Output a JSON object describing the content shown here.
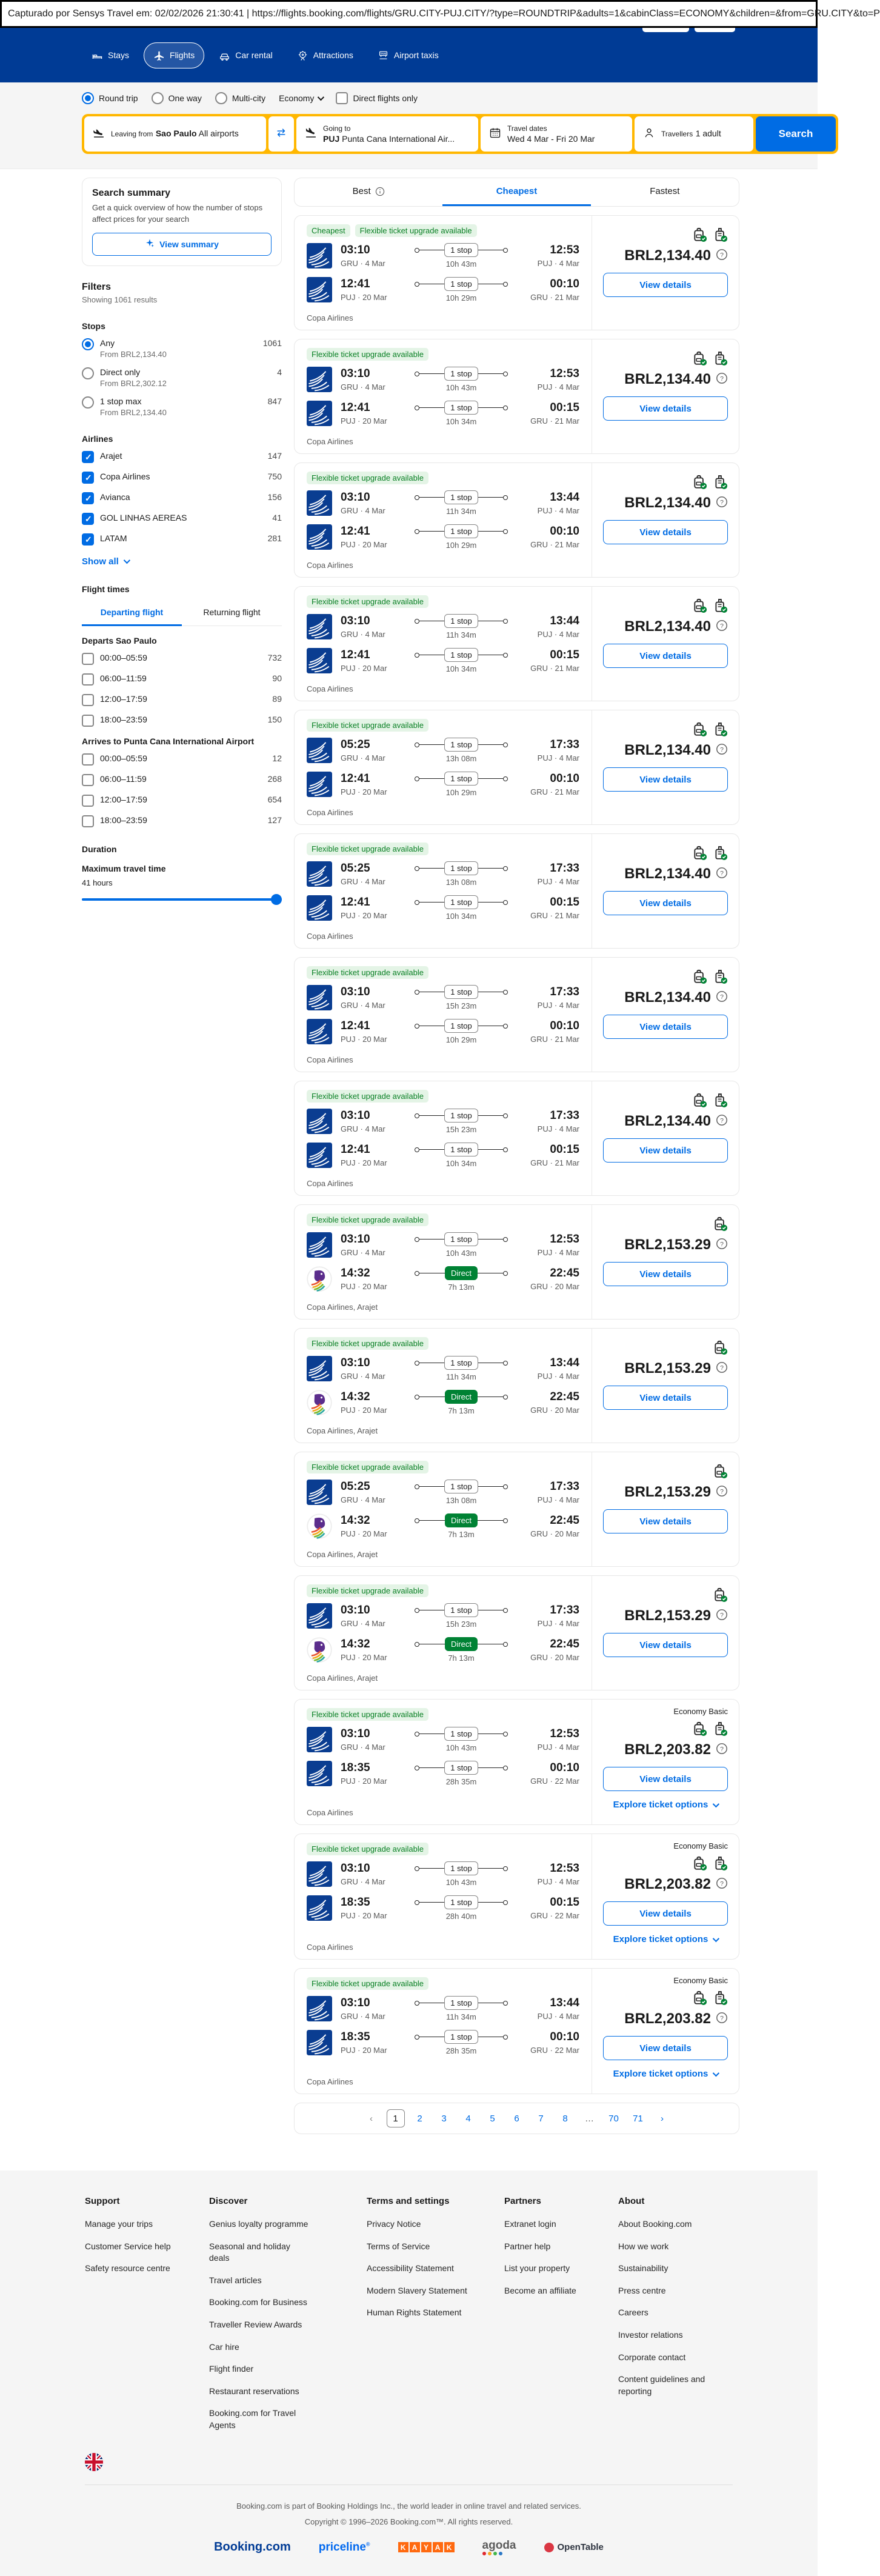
{
  "capture_bar": {
    "text": "Capturado por Sensys Travel em: 02/02/2026 21:30:41  |  https://flights.booking.com/flights/GRU.CITY-PUJ.CITY/?type=ROUNDTRIP&adults=1&cabinClass=ECONOMY&children=&from=GRU.CITY&to=P"
  },
  "nav": {
    "items": [
      {
        "label": "Stays",
        "icon": "bed-icon"
      },
      {
        "label": "Flights",
        "icon": "plane-icon",
        "active": true
      },
      {
        "label": "Car rental",
        "icon": "car-icon"
      },
      {
        "label": "Attractions",
        "icon": "attractions-icon"
      },
      {
        "label": "Airport taxis",
        "icon": "taxi-icon"
      }
    ]
  },
  "search_form": {
    "trip_types": [
      {
        "label": "Round trip",
        "selected": true
      },
      {
        "label": "One way",
        "selected": false
      },
      {
        "label": "Multi-city",
        "selected": false
      }
    ],
    "cabin_class": "Economy",
    "direct_only_label": "Direct flights only",
    "leaving_from": {
      "label": "Leaving from",
      "value_bold": "Sao Paulo",
      "value_rest": " All airports"
    },
    "going_to": {
      "label": "Going to",
      "value_bold": "PUJ",
      "value_rest": " Punta Cana International Air..."
    },
    "dates": {
      "label": "Travel dates",
      "value": "Wed 4 Mar - Fri 20 Mar"
    },
    "travellers": {
      "label": "Travellers",
      "value": "1 adult"
    },
    "search_label": "Search"
  },
  "sidebar": {
    "summary": {
      "title": "Search summary",
      "desc": "Get a quick overview of how the number of stops affect prices for your search",
      "button_label": "View summary"
    },
    "filters_title": "Filters",
    "filters_sub": "Showing 1061 results",
    "stops": {
      "title": "Stops",
      "options": [
        {
          "label": "Any",
          "count": "1061",
          "sub": "From BRL2,134.40",
          "selected": true
        },
        {
          "label": "Direct only",
          "count": "4",
          "sub": "From BRL2,302.12",
          "selected": false
        },
        {
          "label": "1 stop max",
          "count": "847",
          "sub": "From BRL2,134.40",
          "selected": false
        }
      ]
    },
    "airlines": {
      "title": "Airlines",
      "items": [
        {
          "label": "Arajet",
          "count": "147",
          "checked": true
        },
        {
          "label": "Copa Airlines",
          "count": "750",
          "checked": true
        },
        {
          "label": "Avianca",
          "count": "156",
          "checked": true
        },
        {
          "label": "GOL LINHAS AEREAS",
          "count": "41",
          "checked": true
        },
        {
          "label": "LATAM",
          "count": "281",
          "checked": true
        }
      ],
      "show_all": "Show all"
    },
    "flight_times": {
      "title": "Flight times",
      "tabs": [
        {
          "label": "Departing flight",
          "active": true
        },
        {
          "label": "Returning flight",
          "active": false
        }
      ],
      "groups": [
        {
          "title": "Departs Sao Paulo",
          "rows": [
            {
              "label": "00:00–05:59",
              "count": "732"
            },
            {
              "label": "06:00–11:59",
              "count": "90"
            },
            {
              "label": "12:00–17:59",
              "count": "89"
            },
            {
              "label": "18:00–23:59",
              "count": "150"
            }
          ]
        },
        {
          "title": "Arrives to Punta Cana International Airport",
          "rows": [
            {
              "label": "00:00–05:59",
              "count": "12"
            },
            {
              "label": "06:00–11:59",
              "count": "268"
            },
            {
              "label": "12:00–17:59",
              "count": "654"
            },
            {
              "label": "18:00–23:59",
              "count": "127"
            }
          ]
        }
      ]
    },
    "duration": {
      "title": "Duration",
      "label": "Maximum travel time",
      "value": "41 hours"
    }
  },
  "results": {
    "tabs": [
      {
        "label": "Best",
        "info": true,
        "active": false
      },
      {
        "label": "Cheapest",
        "info": false,
        "active": true
      },
      {
        "label": "Fastest",
        "info": false,
        "active": false
      }
    ],
    "view_details_label": "View details",
    "explore_label": "Explore ticket options",
    "cards": [
      {
        "badges": [
          "Cheapest",
          "Flexible ticket upgrade available"
        ],
        "carriers": "Copa Airlines",
        "price": "BRL2,134.40",
        "bags": 2,
        "legs": [
          {
            "airline": "copa",
            "dep": "03:10",
            "dep_sub": "GRU · 4 Mar",
            "stop": "1 stop",
            "direct": false,
            "dur": "10h 43m",
            "arr": "12:53",
            "arr_sub": "PUJ · 4 Mar"
          },
          {
            "airline": "copa",
            "dep": "12:41",
            "dep_sub": "PUJ · 20 Mar",
            "stop": "1 stop",
            "direct": false,
            "dur": "10h 29m",
            "arr": "00:10",
            "arr_sub": "GRU · 21 Mar"
          }
        ]
      },
      {
        "badges": [
          "Flexible ticket upgrade available"
        ],
        "carriers": "Copa Airlines",
        "price": "BRL2,134.40",
        "bags": 2,
        "legs": [
          {
            "airline": "copa",
            "dep": "03:10",
            "dep_sub": "GRU · 4 Mar",
            "stop": "1 stop",
            "direct": false,
            "dur": "10h 43m",
            "arr": "12:53",
            "arr_sub": "PUJ · 4 Mar"
          },
          {
            "airline": "copa",
            "dep": "12:41",
            "dep_sub": "PUJ · 20 Mar",
            "stop": "1 stop",
            "direct": false,
            "dur": "10h 34m",
            "arr": "00:15",
            "arr_sub": "GRU · 21 Mar"
          }
        ]
      },
      {
        "badges": [
          "Flexible ticket upgrade available"
        ],
        "carriers": "Copa Airlines",
        "price": "BRL2,134.40",
        "bags": 2,
        "legs": [
          {
            "airline": "copa",
            "dep": "03:10",
            "dep_sub": "GRU · 4 Mar",
            "stop": "1 stop",
            "direct": false,
            "dur": "11h 34m",
            "arr": "13:44",
            "arr_sub": "PUJ · 4 Mar"
          },
          {
            "airline": "copa",
            "dep": "12:41",
            "dep_sub": "PUJ · 20 Mar",
            "stop": "1 stop",
            "direct": false,
            "dur": "10h 29m",
            "arr": "00:10",
            "arr_sub": "GRU · 21 Mar"
          }
        ]
      },
      {
        "badges": [
          "Flexible ticket upgrade available"
        ],
        "carriers": "Copa Airlines",
        "price": "BRL2,134.40",
        "bags": 2,
        "legs": [
          {
            "airline": "copa",
            "dep": "03:10",
            "dep_sub": "GRU · 4 Mar",
            "stop": "1 stop",
            "direct": false,
            "dur": "11h 34m",
            "arr": "13:44",
            "arr_sub": "PUJ · 4 Mar"
          },
          {
            "airline": "copa",
            "dep": "12:41",
            "dep_sub": "PUJ · 20 Mar",
            "stop": "1 stop",
            "direct": false,
            "dur": "10h 34m",
            "arr": "00:15",
            "arr_sub": "GRU · 21 Mar"
          }
        ]
      },
      {
        "badges": [
          "Flexible ticket upgrade available"
        ],
        "carriers": "Copa Airlines",
        "price": "BRL2,134.40",
        "bags": 2,
        "legs": [
          {
            "airline": "copa",
            "dep": "05:25",
            "dep_sub": "GRU · 4 Mar",
            "stop": "1 stop",
            "direct": false,
            "dur": "13h 08m",
            "arr": "17:33",
            "arr_sub": "PUJ · 4 Mar"
          },
          {
            "airline": "copa",
            "dep": "12:41",
            "dep_sub": "PUJ · 20 Mar",
            "stop": "1 stop",
            "direct": false,
            "dur": "10h 29m",
            "arr": "00:10",
            "arr_sub": "GRU · 21 Mar"
          }
        ]
      },
      {
        "badges": [
          "Flexible ticket upgrade available"
        ],
        "carriers": "Copa Airlines",
        "price": "BRL2,134.40",
        "bags": 2,
        "legs": [
          {
            "airline": "copa",
            "dep": "05:25",
            "dep_sub": "GRU · 4 Mar",
            "stop": "1 stop",
            "direct": false,
            "dur": "13h 08m",
            "arr": "17:33",
            "arr_sub": "PUJ · 4 Mar"
          },
          {
            "airline": "copa",
            "dep": "12:41",
            "dep_sub": "PUJ · 20 Mar",
            "stop": "1 stop",
            "direct": false,
            "dur": "10h 34m",
            "arr": "00:15",
            "arr_sub": "GRU · 21 Mar"
          }
        ]
      },
      {
        "badges": [
          "Flexible ticket upgrade available"
        ],
        "carriers": "Copa Airlines",
        "price": "BRL2,134.40",
        "bags": 2,
        "legs": [
          {
            "airline": "copa",
            "dep": "03:10",
            "dep_sub": "GRU · 4 Mar",
            "stop": "1 stop",
            "direct": false,
            "dur": "15h 23m",
            "arr": "17:33",
            "arr_sub": "PUJ · 4 Mar"
          },
          {
            "airline": "copa",
            "dep": "12:41",
            "dep_sub": "PUJ · 20 Mar",
            "stop": "1 stop",
            "direct": false,
            "dur": "10h 29m",
            "arr": "00:10",
            "arr_sub": "GRU · 21 Mar"
          }
        ]
      },
      {
        "badges": [
          "Flexible ticket upgrade available"
        ],
        "carriers": "Copa Airlines",
        "price": "BRL2,134.40",
        "bags": 2,
        "legs": [
          {
            "airline": "copa",
            "dep": "03:10",
            "dep_sub": "GRU · 4 Mar",
            "stop": "1 stop",
            "direct": false,
            "dur": "15h 23m",
            "arr": "17:33",
            "arr_sub": "PUJ · 4 Mar"
          },
          {
            "airline": "copa",
            "dep": "12:41",
            "dep_sub": "PUJ · 20 Mar",
            "stop": "1 stop",
            "direct": false,
            "dur": "10h 34m",
            "arr": "00:15",
            "arr_sub": "GRU · 21 Mar"
          }
        ]
      },
      {
        "badges": [
          "Flexible ticket upgrade available"
        ],
        "carriers": "Copa Airlines, Arajet",
        "price": "BRL2,153.29",
        "bags": 1,
        "legs": [
          {
            "airline": "copa",
            "dep": "03:10",
            "dep_sub": "GRU · 4 Mar",
            "stop": "1 stop",
            "direct": false,
            "dur": "10h 43m",
            "arr": "12:53",
            "arr_sub": "PUJ · 4 Mar"
          },
          {
            "airline": "arajet",
            "dep": "14:32",
            "dep_sub": "PUJ · 20 Mar",
            "stop": "Direct",
            "direct": true,
            "dur": "7h 13m",
            "arr": "22:45",
            "arr_sub": "GRU · 20 Mar"
          }
        ]
      },
      {
        "badges": [
          "Flexible ticket upgrade available"
        ],
        "carriers": "Copa Airlines, Arajet",
        "price": "BRL2,153.29",
        "bags": 1,
        "legs": [
          {
            "airline": "copa",
            "dep": "03:10",
            "dep_sub": "GRU · 4 Mar",
            "stop": "1 stop",
            "direct": false,
            "dur": "11h 34m",
            "arr": "13:44",
            "arr_sub": "PUJ · 4 Mar"
          },
          {
            "airline": "arajet",
            "dep": "14:32",
            "dep_sub": "PUJ · 20 Mar",
            "stop": "Direct",
            "direct": true,
            "dur": "7h 13m",
            "arr": "22:45",
            "arr_sub": "GRU · 20 Mar"
          }
        ]
      },
      {
        "badges": [
          "Flexible ticket upgrade available"
        ],
        "carriers": "Copa Airlines, Arajet",
        "price": "BRL2,153.29",
        "bags": 1,
        "legs": [
          {
            "airline": "copa",
            "dep": "05:25",
            "dep_sub": "GRU · 4 Mar",
            "stop": "1 stop",
            "direct": false,
            "dur": "13h 08m",
            "arr": "17:33",
            "arr_sub": "PUJ · 4 Mar"
          },
          {
            "airline": "arajet",
            "dep": "14:32",
            "dep_sub": "PUJ · 20 Mar",
            "stop": "Direct",
            "direct": true,
            "dur": "7h 13m",
            "arr": "22:45",
            "arr_sub": "GRU · 20 Mar"
          }
        ]
      },
      {
        "badges": [
          "Flexible ticket upgrade available"
        ],
        "carriers": "Copa Airlines, Arajet",
        "price": "BRL2,153.29",
        "bags": 1,
        "legs": [
          {
            "airline": "copa",
            "dep": "03:10",
            "dep_sub": "GRU · 4 Mar",
            "stop": "1 stop",
            "direct": false,
            "dur": "15h 23m",
            "arr": "17:33",
            "arr_sub": "PUJ · 4 Mar"
          },
          {
            "airline": "arajet",
            "dep": "14:32",
            "dep_sub": "PUJ · 20 Mar",
            "stop": "Direct",
            "direct": true,
            "dur": "7h 13m",
            "arr": "22:45",
            "arr_sub": "GRU · 20 Mar"
          }
        ]
      },
      {
        "badges": [
          "Flexible ticket upgrade available"
        ],
        "fare_label": "Economy Basic",
        "carriers": "Copa Airlines",
        "price": "BRL2,203.82",
        "bags": 2,
        "explore": true,
        "legs": [
          {
            "airline": "copa",
            "dep": "03:10",
            "dep_sub": "GRU · 4 Mar",
            "stop": "1 stop",
            "direct": false,
            "dur": "10h 43m",
            "arr": "12:53",
            "arr_sub": "PUJ · 4 Mar"
          },
          {
            "airline": "copa",
            "dep": "18:35",
            "dep_sub": "PUJ · 20 Mar",
            "stop": "1 stop",
            "direct": false,
            "dur": "28h 35m",
            "arr": "00:10",
            "arr_sub": "GRU · 22 Mar"
          }
        ]
      },
      {
        "badges": [
          "Flexible ticket upgrade available"
        ],
        "fare_label": "Economy Basic",
        "carriers": "Copa Airlines",
        "price": "BRL2,203.82",
        "bags": 2,
        "explore": true,
        "legs": [
          {
            "airline": "copa",
            "dep": "03:10",
            "dep_sub": "GRU · 4 Mar",
            "stop": "1 stop",
            "direct": false,
            "dur": "10h 43m",
            "arr": "12:53",
            "arr_sub": "PUJ · 4 Mar"
          },
          {
            "airline": "copa",
            "dep": "18:35",
            "dep_sub": "PUJ · 20 Mar",
            "stop": "1 stop",
            "direct": false,
            "dur": "28h 40m",
            "arr": "00:15",
            "arr_sub": "GRU · 22 Mar"
          }
        ]
      },
      {
        "badges": [
          "Flexible ticket upgrade available"
        ],
        "fare_label": "Economy Basic",
        "carriers": "Copa Airlines",
        "price": "BRL2,203.82",
        "bags": 2,
        "explore": true,
        "legs": [
          {
            "airline": "copa",
            "dep": "03:10",
            "dep_sub": "GRU · 4 Mar",
            "stop": "1 stop",
            "direct": false,
            "dur": "11h 34m",
            "arr": "13:44",
            "arr_sub": "PUJ · 4 Mar"
          },
          {
            "airline": "copa",
            "dep": "18:35",
            "dep_sub": "PUJ · 20 Mar",
            "stop": "1 stop",
            "direct": false,
            "dur": "28h 35m",
            "arr": "00:10",
            "arr_sub": "GRU · 22 Mar"
          }
        ]
      }
    ],
    "pagination": {
      "prev": "‹",
      "pages": [
        "1",
        "2",
        "3",
        "4",
        "5",
        "6",
        "7",
        "8",
        "…",
        "70",
        "71"
      ],
      "current": "1",
      "next": "›"
    }
  },
  "footer": {
    "columns": [
      {
        "title": "Support",
        "links": [
          "Manage your trips",
          "Customer Service help",
          "Safety resource centre"
        ]
      },
      {
        "title": "Discover",
        "links": [
          "Genius loyalty programme",
          "Seasonal and holiday deals",
          "Travel articles",
          "Booking.com for Business",
          "Traveller Review Awards",
          "Car hire",
          "Flight finder",
          "Restaurant reservations",
          "Booking.com for Travel Agents"
        ]
      },
      {
        "title": "Terms and settings",
        "links": [
          "Privacy Notice",
          "Terms of Service",
          "Accessibility Statement",
          "Modern Slavery Statement",
          "Human Rights Statement"
        ]
      },
      {
        "title": "Partners",
        "links": [
          "Extranet login",
          "Partner help",
          "List your property",
          "Become an affiliate"
        ]
      },
      {
        "title": "About",
        "links": [
          "About Booking.com",
          "How we work",
          "Sustainability",
          "Press centre",
          "Careers",
          "Investor relations",
          "Corporate contact",
          "Content guidelines and reporting"
        ]
      }
    ],
    "legal_line1": "Booking.com is part of Booking Holdings Inc., the world leader in online travel and related services.",
    "legal_line2": "Copyright © 1996–2026 Booking.com™. All rights reserved.",
    "brands": [
      "Booking.com",
      "priceline",
      "KAYAK",
      "agoda",
      "OpenTable"
    ]
  },
  "colors": {
    "header_blue": "#003b95",
    "action_blue": "#006ce4",
    "search_yellow": "#ffb700",
    "badge_green_bg": "#e4f4e6",
    "badge_green_text": "#087f23",
    "direct_green": "#008234"
  }
}
